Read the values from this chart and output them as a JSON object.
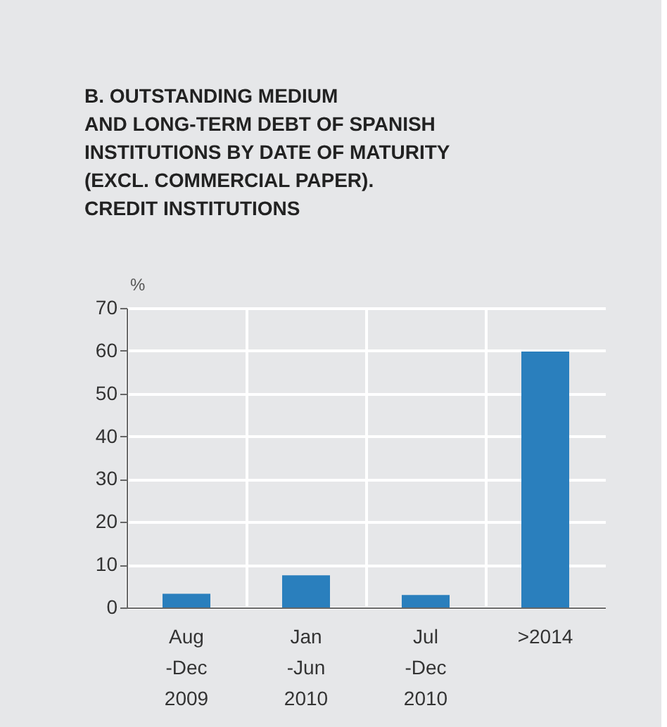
{
  "chart_data": {
    "type": "bar",
    "title": "B. OUTSTANDING MEDIUM\nAND LONG-TERM DEBT OF SPANISH\nINSTITUTIONS BY DATE OF MATURITY\n(EXCL. COMMERCIAL PAPER).\nCREDIT INSTITUTIONS",
    "ylabel": "%",
    "categories": [
      "Aug\n-Dec\n2009",
      "Jan\n-Jun\n2010",
      "Jul\n-Dec\n2010",
      ">2014"
    ],
    "values": [
      3.2,
      7.5,
      2.9,
      59.8
    ],
    "color": "#2a7fbd",
    "ylim": [
      0,
      70
    ],
    "yticks": [
      0,
      10,
      20,
      30,
      40,
      50,
      60,
      70
    ],
    "grid": true
  }
}
